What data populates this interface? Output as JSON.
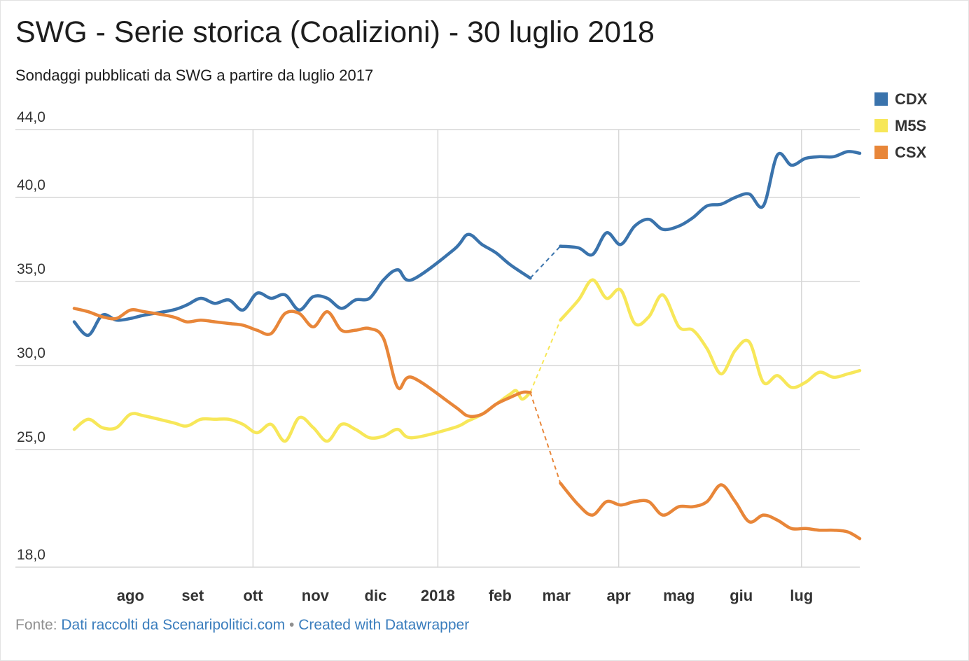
{
  "title": "SWG - Serie storica (Coalizioni) - 30 luglio 2018",
  "subtitle": "Sondaggi pubblicati da SWG a partire da luglio 2017",
  "footer": {
    "source_prefix": "Fonte:",
    "source_link": "Dati raccolti da Scenaripolitici.com",
    "separator": "•",
    "credit_link": "Created with Datawrapper"
  },
  "chart_data": {
    "type": "line",
    "title": "SWG - Serie storica (Coalizioni) - 30 luglio 2018",
    "subtitle": "Sondaggi pubblicati da SWG a partire da luglio 2017",
    "x_type": "date",
    "xlim": [
      "2017-07-04",
      "2018-07-30"
    ],
    "x_ticks": [
      {
        "date": "2017-08-01",
        "label": "ago"
      },
      {
        "date": "2017-09-01",
        "label": "set"
      },
      {
        "date": "2017-10-01",
        "label": "ott"
      },
      {
        "date": "2017-11-01",
        "label": "nov"
      },
      {
        "date": "2017-12-01",
        "label": "dic"
      },
      {
        "date": "2018-01-01",
        "label": "2018"
      },
      {
        "date": "2018-02-01",
        "label": "feb"
      },
      {
        "date": "2018-03-01",
        "label": "mar"
      },
      {
        "date": "2018-04-01",
        "label": "apr"
      },
      {
        "date": "2018-05-01",
        "label": "mag"
      },
      {
        "date": "2018-06-01",
        "label": "giu"
      },
      {
        "date": "2018-07-01",
        "label": "lug"
      }
    ],
    "x_gridlines": [
      "2017-10-01",
      "2018-01-01",
      "2018-04-01",
      "2018-07-01"
    ],
    "ylim": [
      18,
      44
    ],
    "y_ticks": [
      {
        "value": 44,
        "label": "44,0"
      },
      {
        "value": 40,
        "label": "40,0"
      },
      {
        "value": 35,
        "label": "35,0"
      },
      {
        "value": 30,
        "label": "30,0"
      },
      {
        "value": 25,
        "label": "25,0"
      },
      {
        "value": 18,
        "label": "18,0"
      }
    ],
    "grid": true,
    "legend_position": "top-right",
    "dashed_gap": [
      "2018-02-16",
      "2018-03-03"
    ],
    "series": [
      {
        "name": "CDX",
        "color": "#3a73ac",
        "points": [
          [
            "2017-07-04",
            32.6
          ],
          [
            "2017-07-11",
            31.8
          ],
          [
            "2017-07-18",
            33.0
          ],
          [
            "2017-07-25",
            32.7
          ],
          [
            "2017-08-01",
            32.8
          ],
          [
            "2017-08-08",
            33.0
          ],
          [
            "2017-08-22",
            33.3
          ],
          [
            "2017-08-29",
            33.6
          ],
          [
            "2017-09-05",
            34.0
          ],
          [
            "2017-09-12",
            33.7
          ],
          [
            "2017-09-19",
            33.9
          ],
          [
            "2017-09-26",
            33.3
          ],
          [
            "2017-10-03",
            34.3
          ],
          [
            "2017-10-10",
            34.0
          ],
          [
            "2017-10-17",
            34.2
          ],
          [
            "2017-10-24",
            33.3
          ],
          [
            "2017-10-31",
            34.1
          ],
          [
            "2017-11-07",
            34.0
          ],
          [
            "2017-11-14",
            33.4
          ],
          [
            "2017-11-21",
            33.9
          ],
          [
            "2017-11-28",
            34.0
          ],
          [
            "2017-12-05",
            35.1
          ],
          [
            "2017-12-12",
            35.7
          ],
          [
            "2017-12-19",
            35.1
          ],
          [
            "2018-01-09",
            36.9
          ],
          [
            "2018-01-16",
            37.8
          ],
          [
            "2018-01-23",
            37.2
          ],
          [
            "2018-01-30",
            36.7
          ],
          [
            "2018-02-06",
            36.0
          ],
          [
            "2018-02-16",
            35.2
          ],
          [
            "2018-03-03",
            37.1
          ],
          [
            "2018-03-12",
            37.0
          ],
          [
            "2018-03-19",
            36.6
          ],
          [
            "2018-03-26",
            37.9
          ],
          [
            "2018-04-02",
            37.2
          ],
          [
            "2018-04-09",
            38.3
          ],
          [
            "2018-04-16",
            38.7
          ],
          [
            "2018-04-23",
            38.1
          ],
          [
            "2018-05-01",
            38.3
          ],
          [
            "2018-05-08",
            38.8
          ],
          [
            "2018-05-15",
            39.5
          ],
          [
            "2018-05-22",
            39.6
          ],
          [
            "2018-05-29",
            40.0
          ],
          [
            "2018-06-05",
            40.2
          ],
          [
            "2018-06-12",
            39.5
          ],
          [
            "2018-06-19",
            42.5
          ],
          [
            "2018-06-26",
            41.9
          ],
          [
            "2018-07-03",
            42.3
          ],
          [
            "2018-07-10",
            42.4
          ],
          [
            "2018-07-17",
            42.4
          ],
          [
            "2018-07-24",
            42.7
          ],
          [
            "2018-07-30",
            42.6
          ]
        ]
      },
      {
        "name": "M5S",
        "color": "#f7e759",
        "points": [
          [
            "2017-07-04",
            26.2
          ],
          [
            "2017-07-11",
            26.8
          ],
          [
            "2017-07-18",
            26.3
          ],
          [
            "2017-07-25",
            26.3
          ],
          [
            "2017-08-01",
            27.1
          ],
          [
            "2017-08-08",
            27.0
          ],
          [
            "2017-08-22",
            26.6
          ],
          [
            "2017-08-29",
            26.4
          ],
          [
            "2017-09-05",
            26.8
          ],
          [
            "2017-09-12",
            26.8
          ],
          [
            "2017-09-19",
            26.8
          ],
          [
            "2017-09-26",
            26.5
          ],
          [
            "2017-10-03",
            26.0
          ],
          [
            "2017-10-10",
            26.5
          ],
          [
            "2017-10-17",
            25.5
          ],
          [
            "2017-10-24",
            26.9
          ],
          [
            "2017-10-31",
            26.3
          ],
          [
            "2017-11-07",
            25.5
          ],
          [
            "2017-11-14",
            26.5
          ],
          [
            "2017-11-21",
            26.2
          ],
          [
            "2017-11-28",
            25.7
          ],
          [
            "2017-12-05",
            25.8
          ],
          [
            "2017-12-12",
            26.2
          ],
          [
            "2017-12-19",
            25.7
          ],
          [
            "2018-01-09",
            26.3
          ],
          [
            "2018-01-16",
            26.7
          ],
          [
            "2018-01-23",
            27.1
          ],
          [
            "2018-01-30",
            27.7
          ],
          [
            "2018-02-06",
            28.3
          ],
          [
            "2018-02-09",
            28.5
          ],
          [
            "2018-02-12",
            28.0
          ],
          [
            "2018-02-16",
            28.4
          ],
          [
            "2018-03-03",
            32.7
          ],
          [
            "2018-03-12",
            33.9
          ],
          [
            "2018-03-19",
            35.1
          ],
          [
            "2018-03-26",
            34.0
          ],
          [
            "2018-04-02",
            34.5
          ],
          [
            "2018-04-09",
            32.5
          ],
          [
            "2018-04-16",
            32.9
          ],
          [
            "2018-04-23",
            34.2
          ],
          [
            "2018-05-01",
            32.3
          ],
          [
            "2018-05-08",
            32.1
          ],
          [
            "2018-05-15",
            31.0
          ],
          [
            "2018-05-22",
            29.5
          ],
          [
            "2018-05-29",
            30.9
          ],
          [
            "2018-06-05",
            31.4
          ],
          [
            "2018-06-12",
            29.0
          ],
          [
            "2018-06-19",
            29.4
          ],
          [
            "2018-06-26",
            28.7
          ],
          [
            "2018-07-03",
            29.0
          ],
          [
            "2018-07-10",
            29.6
          ],
          [
            "2018-07-17",
            29.3
          ],
          [
            "2018-07-24",
            29.5
          ],
          [
            "2018-07-30",
            29.7
          ]
        ]
      },
      {
        "name": "CSX",
        "color": "#e88639",
        "points": [
          [
            "2017-07-04",
            33.4
          ],
          [
            "2017-07-11",
            33.2
          ],
          [
            "2017-07-18",
            32.9
          ],
          [
            "2017-07-25",
            32.8
          ],
          [
            "2017-08-01",
            33.3
          ],
          [
            "2017-08-08",
            33.2
          ],
          [
            "2017-08-22",
            32.9
          ],
          [
            "2017-08-29",
            32.6
          ],
          [
            "2017-09-05",
            32.7
          ],
          [
            "2017-09-12",
            32.6
          ],
          [
            "2017-09-19",
            32.5
          ],
          [
            "2017-09-26",
            32.4
          ],
          [
            "2017-10-03",
            32.1
          ],
          [
            "2017-10-10",
            31.9
          ],
          [
            "2017-10-17",
            33.1
          ],
          [
            "2017-10-24",
            33.1
          ],
          [
            "2017-10-31",
            32.3
          ],
          [
            "2017-11-07",
            33.2
          ],
          [
            "2017-11-14",
            32.1
          ],
          [
            "2017-11-21",
            32.1
          ],
          [
            "2017-11-28",
            32.2
          ],
          [
            "2017-12-05",
            31.6
          ],
          [
            "2017-12-12",
            28.7
          ],
          [
            "2017-12-19",
            29.3
          ],
          [
            "2018-01-09",
            27.6
          ],
          [
            "2018-01-16",
            27.0
          ],
          [
            "2018-01-23",
            27.1
          ],
          [
            "2018-01-30",
            27.7
          ],
          [
            "2018-02-06",
            28.1
          ],
          [
            "2018-02-12",
            28.4
          ],
          [
            "2018-02-16",
            28.4
          ],
          [
            "2018-03-03",
            23.0
          ],
          [
            "2018-03-12",
            21.7
          ],
          [
            "2018-03-19",
            21.1
          ],
          [
            "2018-03-26",
            21.9
          ],
          [
            "2018-04-02",
            21.7
          ],
          [
            "2018-04-09",
            21.9
          ],
          [
            "2018-04-16",
            21.9
          ],
          [
            "2018-04-23",
            21.1
          ],
          [
            "2018-05-01",
            21.6
          ],
          [
            "2018-05-08",
            21.6
          ],
          [
            "2018-05-15",
            21.9
          ],
          [
            "2018-05-22",
            22.9
          ],
          [
            "2018-05-29",
            21.9
          ],
          [
            "2018-06-05",
            20.7
          ],
          [
            "2018-06-12",
            21.1
          ],
          [
            "2018-06-19",
            20.8
          ],
          [
            "2018-06-26",
            20.3
          ],
          [
            "2018-07-03",
            20.3
          ],
          [
            "2018-07-10",
            20.2
          ],
          [
            "2018-07-17",
            20.2
          ],
          [
            "2018-07-24",
            20.1
          ],
          [
            "2018-07-30",
            19.7
          ]
        ]
      }
    ]
  }
}
